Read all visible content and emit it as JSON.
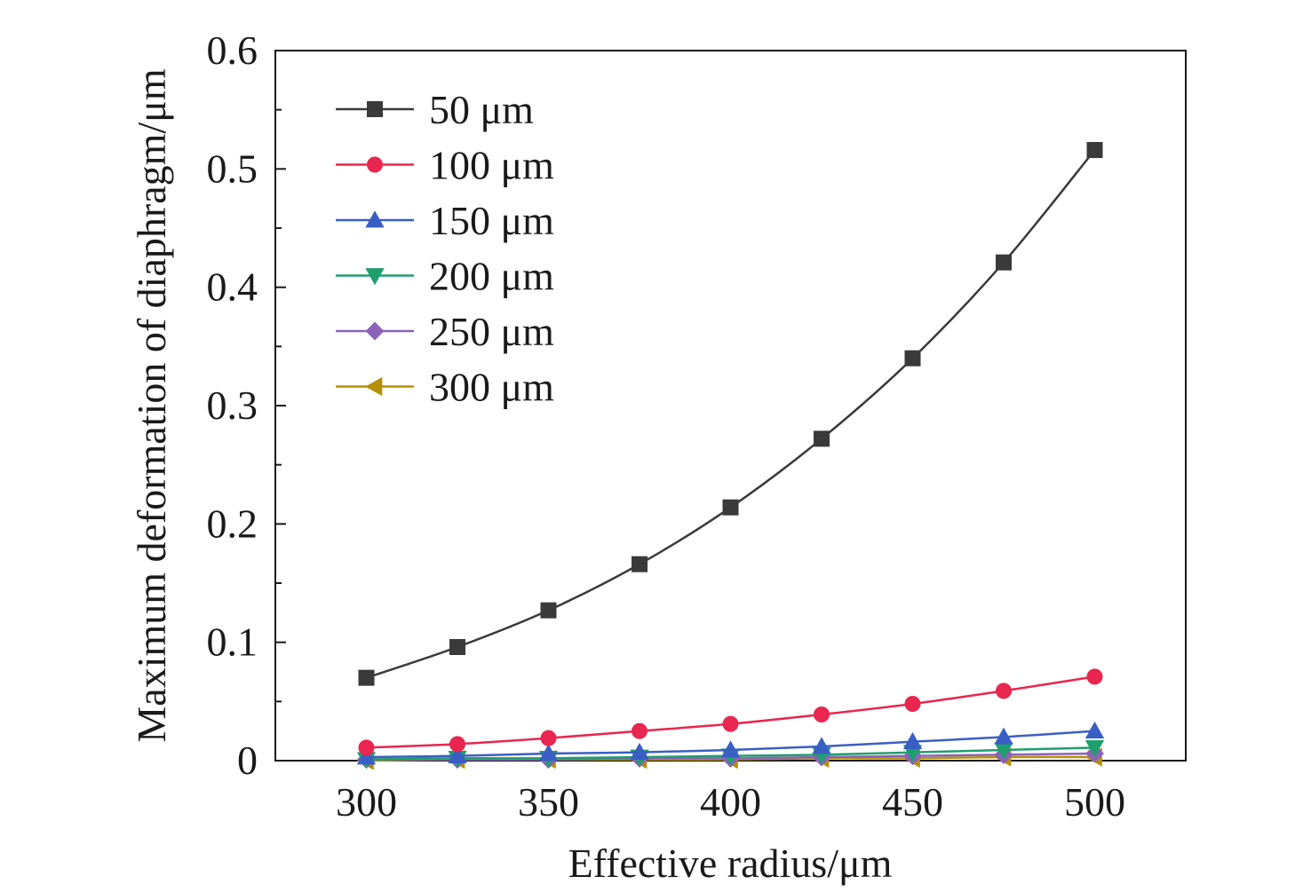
{
  "chart_data": {
    "type": "line",
    "title": "",
    "xlabel": "Effective radius/μm",
    "ylabel": "Maximum deformation of diaphragm/μm",
    "xlim": [
      275,
      525
    ],
    "ylim": [
      0,
      0.6
    ],
    "xticks": [
      300,
      350,
      400,
      450,
      500
    ],
    "xtick_labels": [
      "300",
      "350",
      "400",
      "450",
      "500"
    ],
    "yticks": [
      0,
      0.1,
      0.2,
      0.3,
      0.4,
      0.5,
      0.6
    ],
    "ytick_labels": [
      "0",
      "0.1",
      "0.2",
      "0.3",
      "0.4",
      "0.5",
      "0.6"
    ],
    "grid": false,
    "legend_position": "top-left",
    "x": [
      300,
      325,
      350,
      375,
      400,
      425,
      450,
      475,
      500
    ],
    "series": [
      {
        "name": "50 μm",
        "color": "#3a3a3a",
        "marker": "square",
        "values": [
          0.07,
          0.096,
          0.127,
          0.166,
          0.214,
          0.272,
          0.34,
          0.421,
          0.516
        ]
      },
      {
        "name": "100 μm",
        "color": "#e8264f",
        "marker": "circle",
        "values": [
          0.011,
          0.014,
          0.019,
          0.025,
          0.031,
          0.039,
          0.048,
          0.059,
          0.071
        ]
      },
      {
        "name": "150 μm",
        "color": "#3a5fc4",
        "marker": "triangle-up",
        "values": [
          0.003,
          0.004,
          0.006,
          0.007,
          0.009,
          0.012,
          0.016,
          0.02,
          0.025
        ]
      },
      {
        "name": "200 μm",
        "color": "#1f9e6e",
        "marker": "triangle-down",
        "values": [
          0.001,
          0.002,
          0.002,
          0.003,
          0.004,
          0.005,
          0.007,
          0.009,
          0.011
        ]
      },
      {
        "name": "250 μm",
        "color": "#8a63b8",
        "marker": "diamond",
        "values": [
          0.001,
          0.001,
          0.001,
          0.002,
          0.002,
          0.003,
          0.004,
          0.005,
          0.006
        ]
      },
      {
        "name": "300 μm",
        "color": "#b58f07",
        "marker": "triangle-left",
        "values": [
          0.0,
          0.001,
          0.001,
          0.001,
          0.001,
          0.002,
          0.002,
          0.003,
          0.003
        ]
      }
    ]
  }
}
